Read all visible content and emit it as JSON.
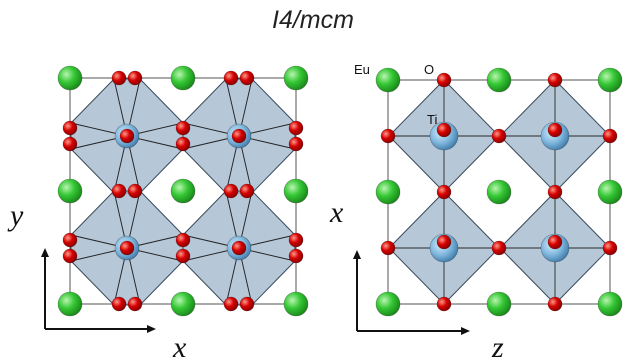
{
  "title": "I4/mcm",
  "colors": {
    "eu": "#33c233",
    "o": "#d40000",
    "ti": "#3f8ec9",
    "octahedron": "#9ab2c9",
    "cell": "#555555"
  },
  "left_panel": {
    "axis_vertical": "y",
    "axis_horizontal": "x"
  },
  "right_panel": {
    "axis_vertical": "x",
    "axis_horizontal": "z",
    "labels": {
      "eu": "Eu",
      "o": "O",
      "ti": "Ti"
    }
  }
}
